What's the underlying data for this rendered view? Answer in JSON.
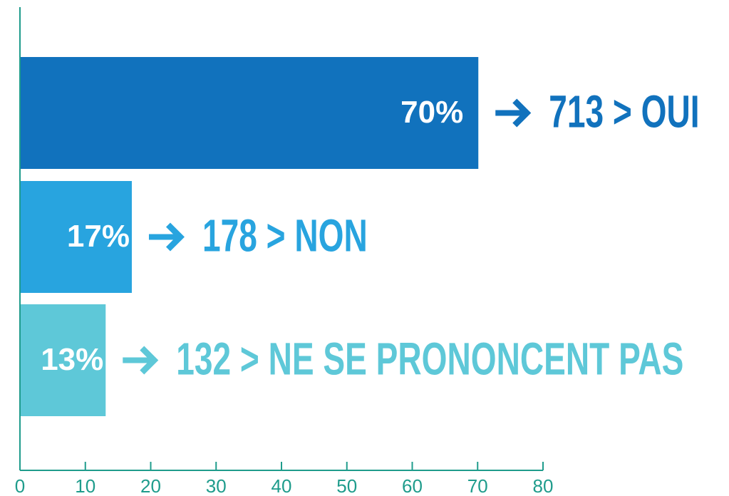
{
  "chart_data": {
    "type": "hbar",
    "categories": [
      "713 > OUI",
      "178 > NON",
      "132 > NE SE PRONONCENT PAS"
    ],
    "values": [
      70,
      17,
      13
    ],
    "value_labels": [
      "70%",
      "17%",
      "13%"
    ],
    "colors": [
      "#1172bd",
      "#28a4df",
      "#5ec8d8"
    ],
    "xlim": [
      0,
      80
    ],
    "xticks": [
      0,
      10,
      20,
      30,
      40,
      50,
      60,
      70,
      80
    ],
    "axis_color": "#1f9c8c"
  }
}
